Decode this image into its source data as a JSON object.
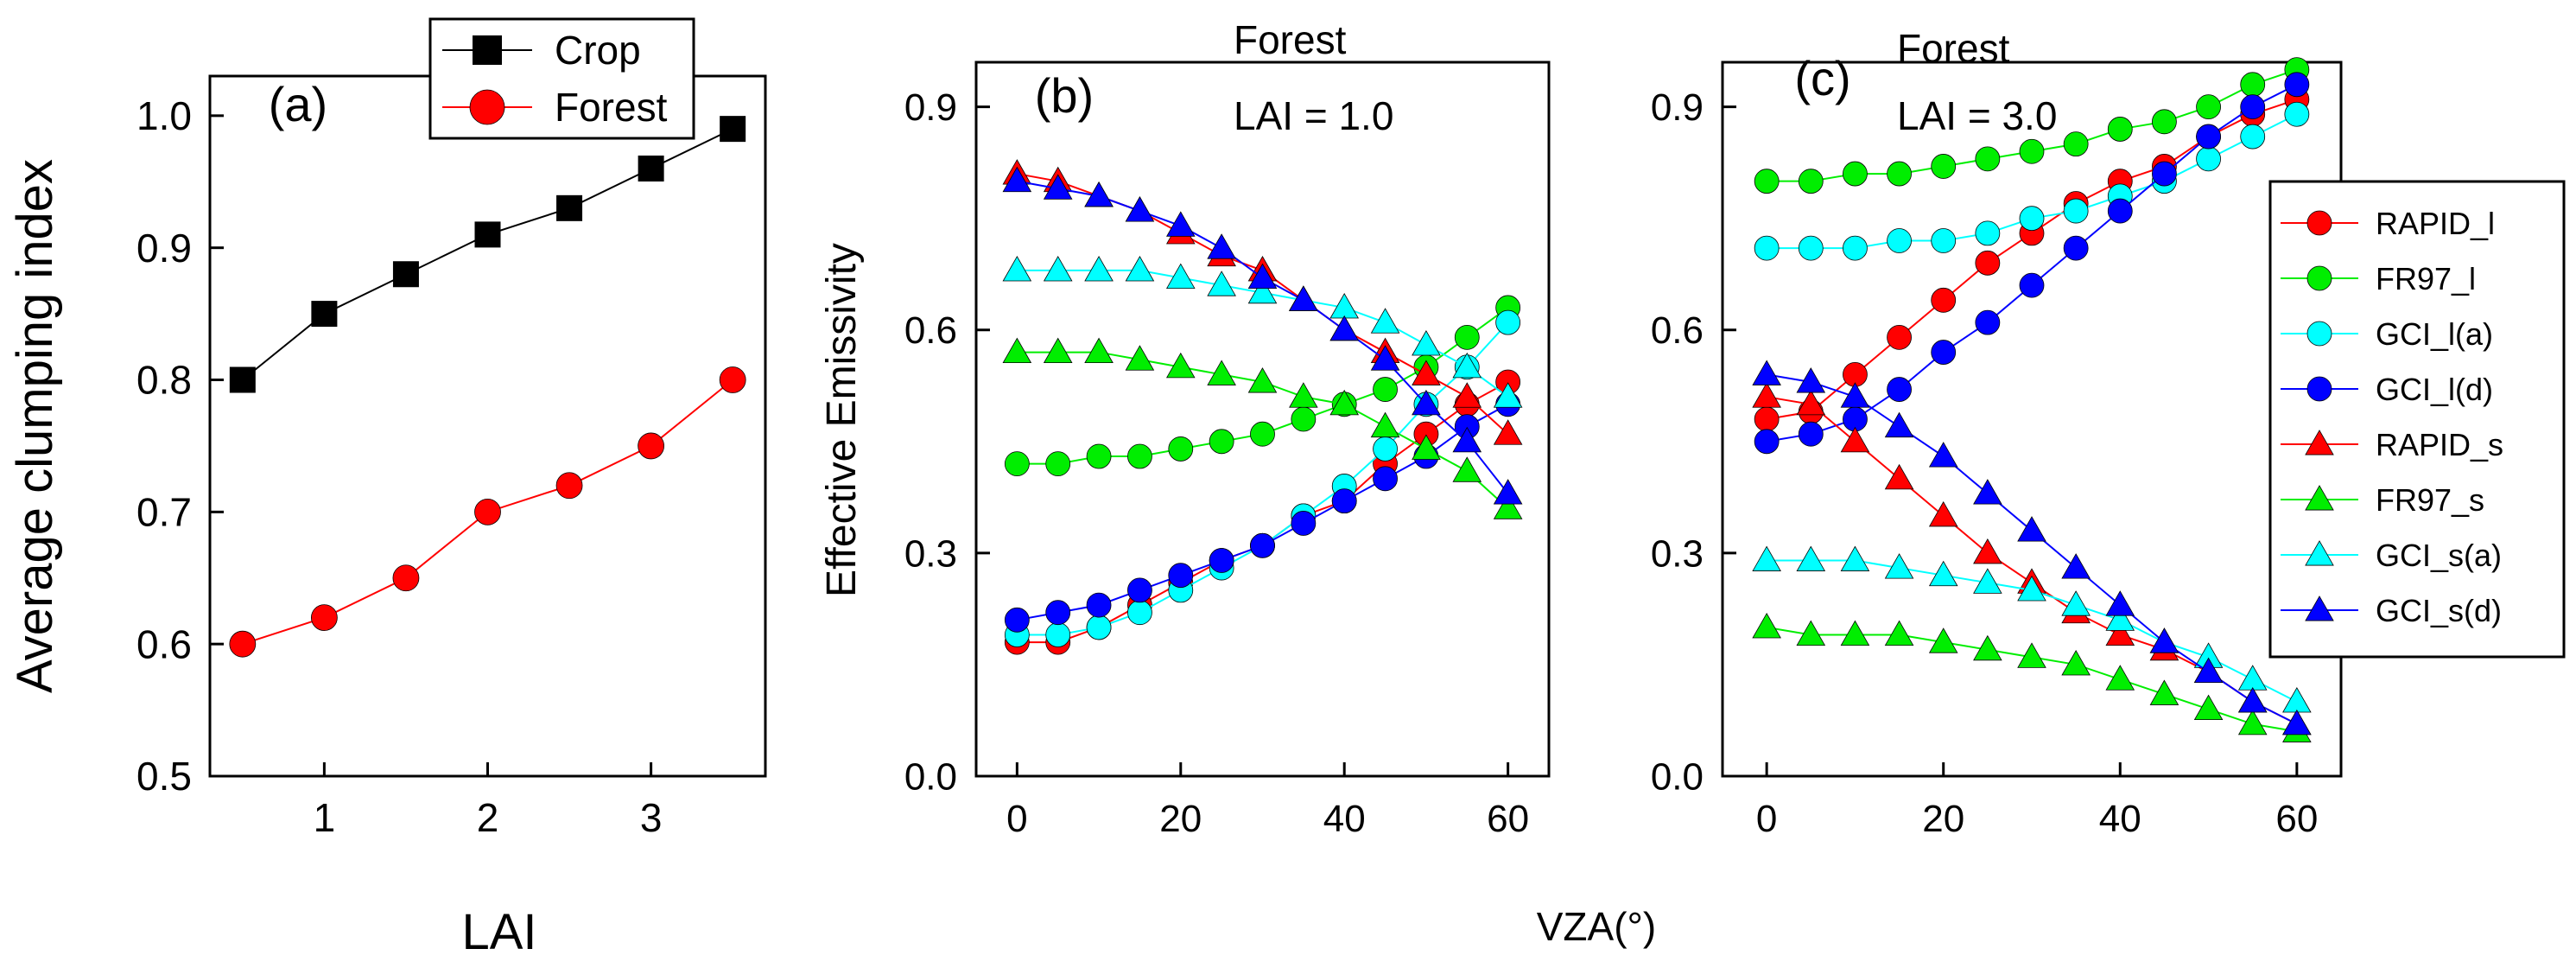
{
  "figure": {
    "shared_xlabel": "VZA(°)"
  },
  "colors": {
    "black": "#000000",
    "red": "#ff0000",
    "green": "#00ee00",
    "cyan": "#00ffff",
    "blue": "#0000ff"
  },
  "chart_data": [
    {
      "panel": "(a)",
      "type": "line",
      "title": "",
      "xlabel": "LAI",
      "ylabel": "Average clumping index",
      "xlim": [
        0.3,
        3.7
      ],
      "ylim": [
        0.5,
        1.03
      ],
      "xticks": [
        1,
        2,
        3
      ],
      "yticks": [
        0.5,
        0.6,
        0.7,
        0.8,
        0.9,
        1.0
      ],
      "ytick_labels": [
        "0.5",
        "0.6",
        "0.7",
        "0.8",
        "0.9",
        "1.0"
      ],
      "x": [
        0.5,
        1.0,
        1.5,
        2.0,
        2.5,
        3.0,
        3.5
      ],
      "series": [
        {
          "name": "Crop",
          "color": "#000000",
          "marker": "square",
          "values": [
            0.8,
            0.85,
            0.88,
            0.91,
            0.93,
            0.96,
            0.99
          ]
        },
        {
          "name": "Forest",
          "color": "#ff0000",
          "marker": "circle",
          "values": [
            0.6,
            0.62,
            0.65,
            0.7,
            0.72,
            0.75,
            0.8
          ]
        }
      ],
      "legend": {
        "position": "top-right",
        "entries": [
          "Crop",
          "Forest"
        ]
      }
    },
    {
      "panel": "(b)",
      "type": "line",
      "annotation_lines": [
        "Forest",
        "LAI = 1.0"
      ],
      "xlabel": "",
      "ylabel": "Effective Emissivity",
      "xlim": [
        -5,
        65
      ],
      "ylim": [
        0.0,
        0.96
      ],
      "xticks": [
        0,
        20,
        40,
        60
      ],
      "yticks": [
        0.0,
        0.3,
        0.6,
        0.9
      ],
      "ytick_labels": [
        "0.0",
        "0.3",
        "0.6",
        "0.9"
      ],
      "x": [
        0,
        5,
        10,
        15,
        20,
        25,
        30,
        35,
        40,
        45,
        50,
        55,
        60
      ],
      "series": [
        {
          "name": "RAPID_l",
          "color": "#ff0000",
          "marker": "circle",
          "values": [
            0.18,
            0.18,
            0.2,
            0.23,
            0.26,
            0.29,
            0.31,
            0.35,
            0.37,
            0.42,
            0.46,
            0.5,
            0.53
          ]
        },
        {
          "name": "FR97_l",
          "color": "#00ee00",
          "marker": "circle",
          "values": [
            0.42,
            0.42,
            0.43,
            0.43,
            0.44,
            0.45,
            0.46,
            0.48,
            0.5,
            0.52,
            0.55,
            0.59,
            0.63
          ]
        },
        {
          "name": "GCI_l(a)",
          "color": "#00ffff",
          "marker": "circle",
          "values": [
            0.19,
            0.19,
            0.2,
            0.22,
            0.25,
            0.28,
            0.31,
            0.35,
            0.39,
            0.44,
            0.5,
            0.55,
            0.61
          ]
        },
        {
          "name": "GCI_l(d)",
          "color": "#0000ff",
          "marker": "circle",
          "values": [
            0.21,
            0.22,
            0.23,
            0.25,
            0.27,
            0.29,
            0.31,
            0.34,
            0.37,
            0.4,
            0.43,
            0.47,
            0.5
          ]
        },
        {
          "name": "RAPID_s",
          "color": "#ff0000",
          "marker": "triangle",
          "values": [
            0.81,
            0.8,
            0.78,
            0.76,
            0.73,
            0.7,
            0.68,
            0.64,
            0.6,
            0.57,
            0.54,
            0.51,
            0.46
          ]
        },
        {
          "name": "FR97_s",
          "color": "#00ee00",
          "marker": "triangle",
          "values": [
            0.57,
            0.57,
            0.57,
            0.56,
            0.55,
            0.54,
            0.53,
            0.51,
            0.5,
            0.47,
            0.44,
            0.41,
            0.36
          ]
        },
        {
          "name": "GCI_s(a)",
          "color": "#00ffff",
          "marker": "triangle",
          "values": [
            0.68,
            0.68,
            0.68,
            0.68,
            0.67,
            0.66,
            0.65,
            0.64,
            0.63,
            0.61,
            0.58,
            0.55,
            0.51
          ]
        },
        {
          "name": "GCI_s(d)",
          "color": "#0000ff",
          "marker": "triangle",
          "values": [
            0.8,
            0.79,
            0.78,
            0.76,
            0.74,
            0.71,
            0.67,
            0.64,
            0.6,
            0.56,
            0.5,
            0.45,
            0.38
          ]
        }
      ]
    },
    {
      "panel": "(c)",
      "type": "line",
      "annotation_lines": [
        "Forest",
        "LAI = 3.0"
      ],
      "xlabel": "",
      "ylabel": "",
      "xlim": [
        -5,
        65
      ],
      "ylim": [
        0.0,
        0.96
      ],
      "xticks": [
        0,
        20,
        40,
        60
      ],
      "yticks": [
        0.0,
        0.3,
        0.6,
        0.9
      ],
      "ytick_labels": [
        "0.0",
        "0.3",
        "0.6",
        "0.9"
      ],
      "x": [
        0,
        5,
        10,
        15,
        20,
        25,
        30,
        35,
        40,
        45,
        50,
        55,
        60
      ],
      "series": [
        {
          "name": "RAPID_l",
          "color": "#ff0000",
          "marker": "circle",
          "values": [
            0.48,
            0.49,
            0.54,
            0.59,
            0.64,
            0.69,
            0.73,
            0.77,
            0.8,
            0.82,
            0.86,
            0.89,
            0.91
          ]
        },
        {
          "name": "FR97_l",
          "color": "#00ee00",
          "marker": "circle",
          "values": [
            0.8,
            0.8,
            0.81,
            0.81,
            0.82,
            0.83,
            0.84,
            0.85,
            0.87,
            0.88,
            0.9,
            0.93,
            0.95
          ]
        },
        {
          "name": "GCI_l(a)",
          "color": "#00ffff",
          "marker": "circle",
          "values": [
            0.71,
            0.71,
            0.71,
            0.72,
            0.72,
            0.73,
            0.75,
            0.76,
            0.78,
            0.8,
            0.83,
            0.86,
            0.89
          ]
        },
        {
          "name": "GCI_l(d)",
          "color": "#0000ff",
          "marker": "circle",
          "values": [
            0.45,
            0.46,
            0.48,
            0.52,
            0.57,
            0.61,
            0.66,
            0.71,
            0.76,
            0.81,
            0.86,
            0.9,
            0.93
          ]
        },
        {
          "name": "RAPID_s",
          "color": "#ff0000",
          "marker": "triangle",
          "values": [
            0.51,
            0.5,
            0.45,
            0.4,
            0.35,
            0.3,
            0.26,
            0.22,
            0.19,
            0.17,
            0.14,
            0.1,
            0.07
          ]
        },
        {
          "name": "FR97_s",
          "color": "#00ee00",
          "marker": "triangle",
          "values": [
            0.2,
            0.19,
            0.19,
            0.19,
            0.18,
            0.17,
            0.16,
            0.15,
            0.13,
            0.11,
            0.09,
            0.07,
            0.06
          ]
        },
        {
          "name": "GCI_s(a)",
          "color": "#00ffff",
          "marker": "triangle",
          "values": [
            0.29,
            0.29,
            0.29,
            0.28,
            0.27,
            0.26,
            0.25,
            0.23,
            0.21,
            0.18,
            0.16,
            0.13,
            0.1
          ]
        },
        {
          "name": "GCI_s(d)",
          "color": "#0000ff",
          "marker": "triangle",
          "values": [
            0.54,
            0.53,
            0.51,
            0.47,
            0.43,
            0.38,
            0.33,
            0.28,
            0.23,
            0.18,
            0.14,
            0.1,
            0.07
          ]
        }
      ],
      "legend": {
        "position": "right",
        "entries": [
          "RAPID_l",
          "FR97_l",
          "GCI_l(a)",
          "GCI_l(d)",
          "RAPID_s",
          "FR97_s",
          "GCI_s(a)",
          "GCI_s(d)"
        ]
      }
    }
  ]
}
